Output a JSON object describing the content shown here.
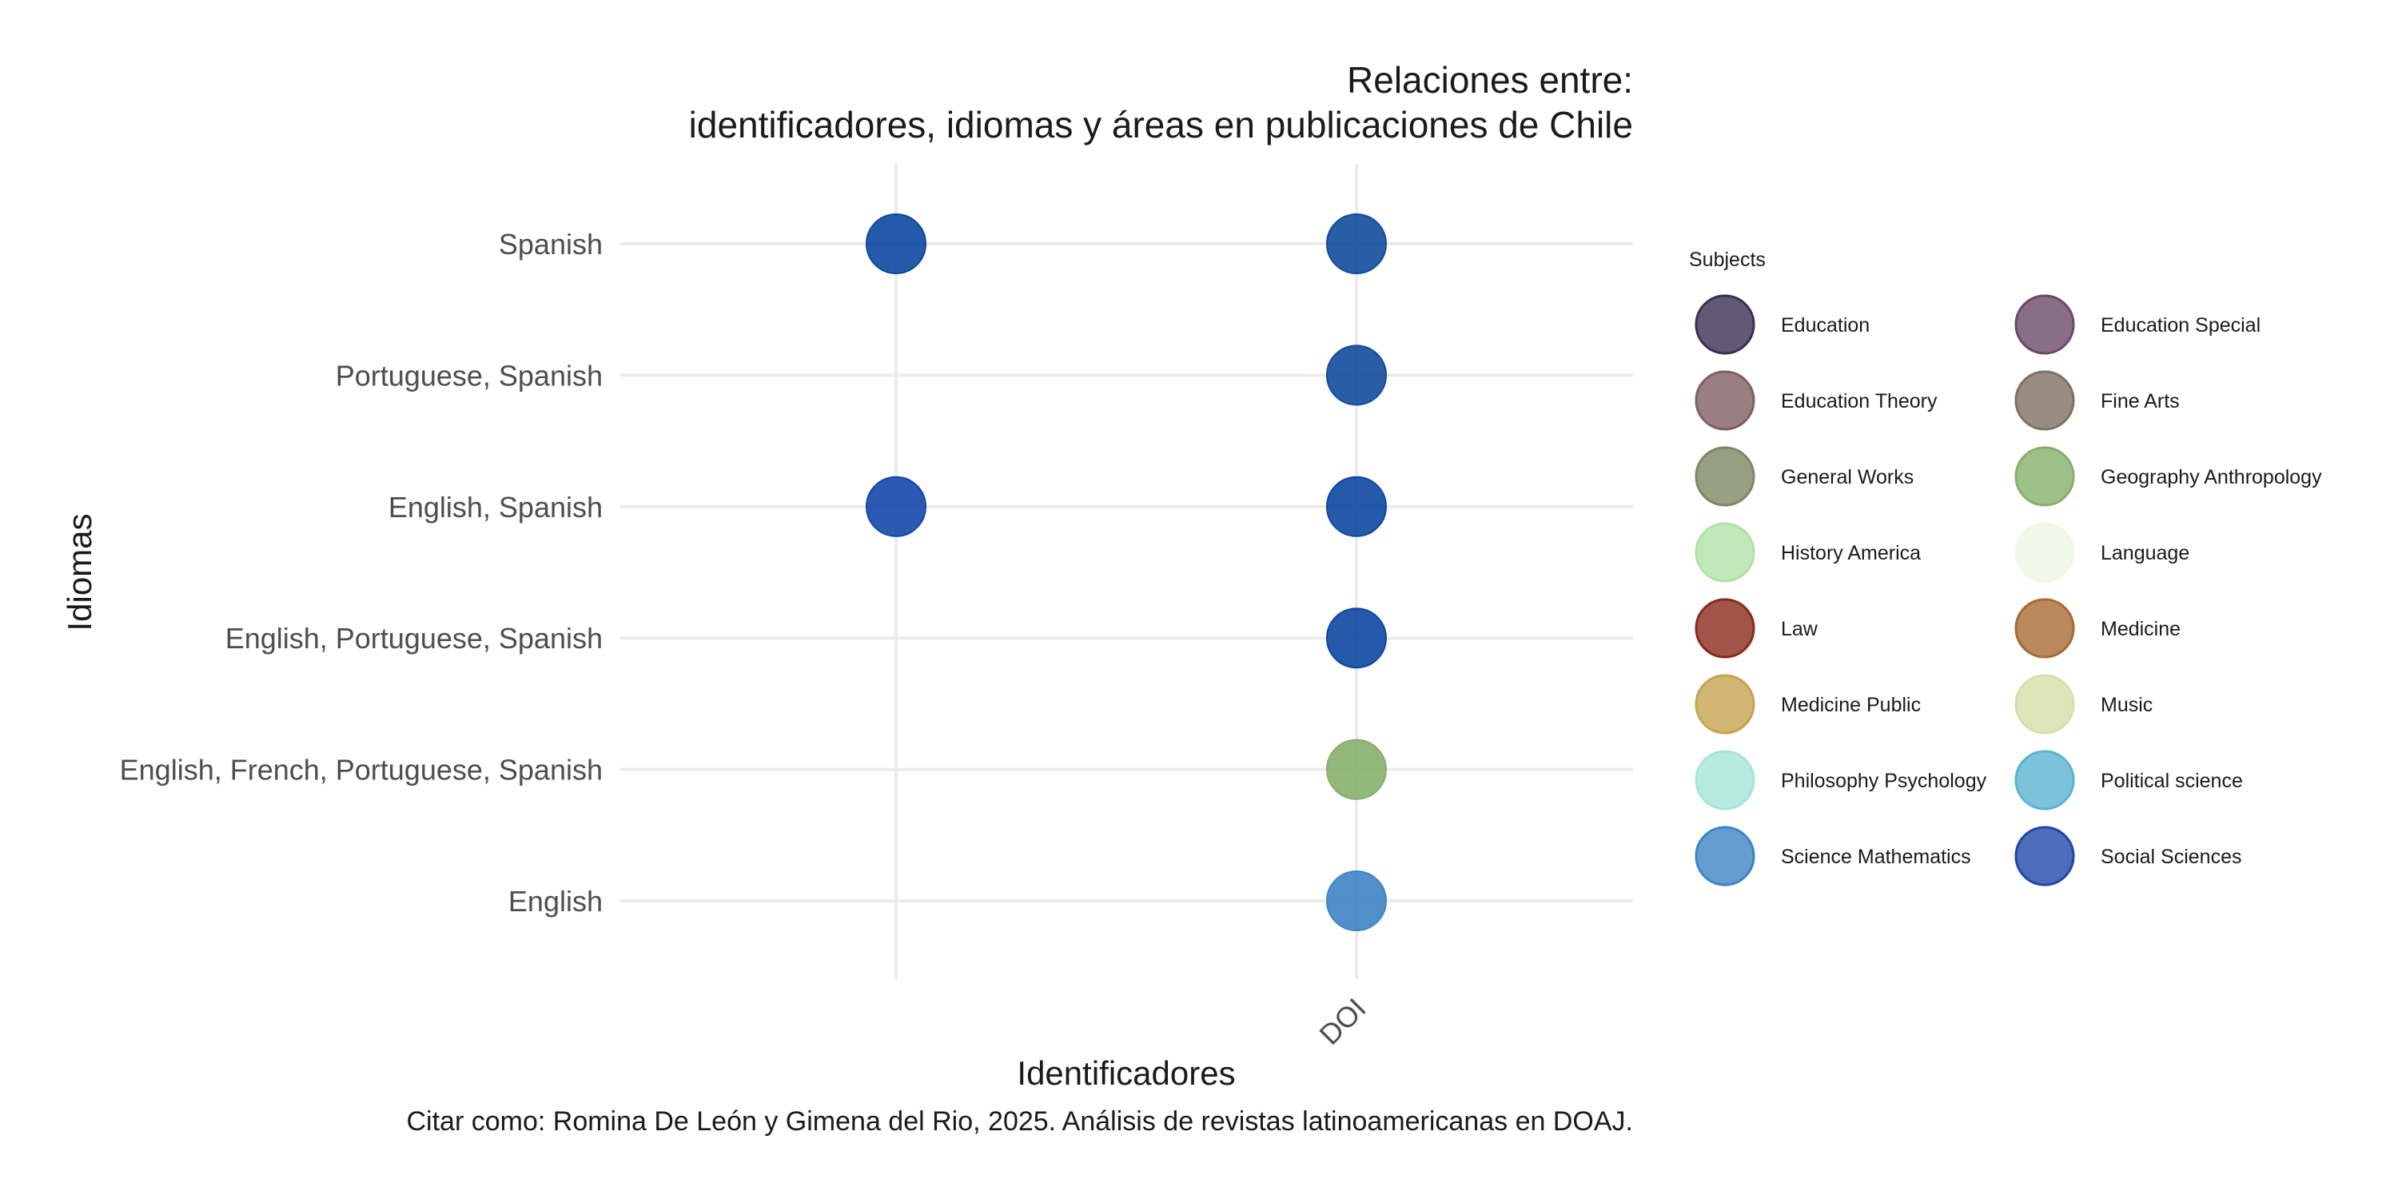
{
  "chart_data": {
    "type": "scatter",
    "title": [
      "Relaciones entre:",
      "identificadores, idiomas y áreas en publicaciones de Chile"
    ],
    "caption": "Citar como: Romina De León y Gimena del Rio, 2025. Análisis de revistas latinoamericanas en DOAJ.",
    "xlabel": "Identificadores",
    "ylabel": "Idiomas",
    "x_categories": [
      "",
      "DOI"
    ],
    "y_categories": [
      "English",
      "English, French, Portuguese, Spanish",
      "English, Portuguese, Spanish",
      "English, Spanish",
      "Portuguese, Spanish",
      "Spanish"
    ],
    "grid": true,
    "legend": {
      "title": "Subjects",
      "position": "right",
      "columns": 2,
      "items": [
        {
          "label": "Education",
          "color": "#3b2f55"
        },
        {
          "label": "Education Special",
          "color": "#6b4a68"
        },
        {
          "label": "Education Theory",
          "color": "#7f5f61"
        },
        {
          "label": "Fine Arts",
          "color": "#7f7061"
        },
        {
          "label": "General Works",
          "color": "#7e8763"
        },
        {
          "label": "Geography Anthropology",
          "color": "#86b06b"
        },
        {
          "label": "History America",
          "color": "#b0e2a6"
        },
        {
          "label": "Language",
          "color": "#eef9e4"
        },
        {
          "label": "Law",
          "color": "#8a2a1c"
        },
        {
          "label": "Medicine",
          "color": "#a76a34"
        },
        {
          "label": "Medicine Public",
          "color": "#c5a350"
        },
        {
          "label": "Music",
          "color": "#d6e0a8"
        },
        {
          "label": "Philosophy Psychology",
          "color": "#a6e6d8"
        },
        {
          "label": "Political science",
          "color": "#5cb3d2"
        },
        {
          "label": "Science Mathematics",
          "color": "#3f84c6"
        },
        {
          "label": "Social Sciences",
          "color": "#2047a8"
        }
      ]
    },
    "points": [
      {
        "x": "",
        "y": "Spanish",
        "color": "#0d47a1"
      },
      {
        "x": "DOI",
        "y": "Spanish",
        "color": "#124c9c"
      },
      {
        "x": "DOI",
        "y": "Portuguese, Spanish",
        "color": "#124c9c"
      },
      {
        "x": "",
        "y": "English, Spanish",
        "color": "#1547a8"
      },
      {
        "x": "DOI",
        "y": "English, Spanish",
        "color": "#0d47a1"
      },
      {
        "x": "DOI",
        "y": "English, Portuguese, Spanish",
        "color": "#0d47a1"
      },
      {
        "x": "DOI",
        "y": "English, French, Portuguese, Spanish",
        "color": "#86b06b"
      },
      {
        "x": "DOI",
        "y": "English",
        "color": "#3f84c6"
      }
    ]
  }
}
